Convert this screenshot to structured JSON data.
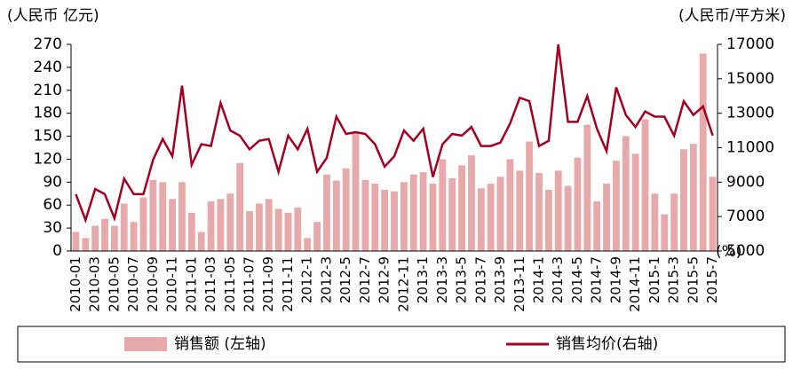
{
  "chart_data": {
    "type": "bar",
    "ylabel": "(人民币 亿元)",
    "y2label": "(人民币/平方米)",
    "annotation": "(%)",
    "categories": [
      "2010-01",
      null,
      "2010-03",
      null,
      "2010-05",
      null,
      "2010-07",
      null,
      "2010-09",
      null,
      "2010-11",
      null,
      "2011-01",
      null,
      "2011-03",
      null,
      "2011-05",
      null,
      "2011-07",
      null,
      "2011-09",
      null,
      "2011-11",
      null,
      "2012-1",
      null,
      "2012-3",
      null,
      "2012-5",
      null,
      "2012-7",
      null,
      "2012-9",
      null,
      "2012-11",
      null,
      "2013-1",
      null,
      "2013-3",
      null,
      "2013-5",
      null,
      "2013-7",
      null,
      "2013-9",
      null,
      "2013-11",
      null,
      "2014-1",
      null,
      "2014-3",
      null,
      "2014-5",
      null,
      "2014-7",
      null,
      "2014-9",
      null,
      "2014-11",
      null,
      "2015-1",
      null,
      "2015-3",
      null,
      "2015-5",
      null,
      "2015-7"
    ],
    "series": [
      {
        "name": "销售额 (左轴)",
        "type": "bar",
        "color": "#e8a9aa",
        "values": [
          25,
          17,
          33,
          42,
          33,
          62,
          38,
          70,
          93,
          90,
          68,
          90,
          50,
          25,
          65,
          68,
          75,
          115,
          52,
          62,
          68,
          55,
          50,
          57,
          17,
          38,
          100,
          92,
          108,
          155,
          93,
          88,
          80,
          78,
          90,
          100,
          103,
          88,
          120,
          95,
          112,
          125,
          82,
          88,
          97,
          120,
          105,
          143,
          102,
          80,
          105,
          85,
          122,
          165,
          65,
          88,
          118,
          150,
          127,
          172,
          75,
          48,
          75,
          133,
          140,
          258,
          97
        ]
      },
      {
        "name": "销售均价(右轴)",
        "type": "line",
        "axis": "y2",
        "color": "#a50021",
        "values": [
          8300,
          6800,
          8600,
          8300,
          6900,
          9200,
          8300,
          8300,
          10300,
          11500,
          10500,
          14600,
          10000,
          11200,
          11100,
          13600,
          12000,
          11700,
          10900,
          11400,
          11500,
          9600,
          11700,
          10900,
          12100,
          9600,
          10400,
          12800,
          11800,
          11900,
          11800,
          11200,
          9900,
          10500,
          12000,
          11400,
          12100,
          9300,
          11200,
          11800,
          11700,
          12200,
          11100,
          11100,
          11300,
          12400,
          13900,
          13700,
          11100,
          11400,
          17000,
          12500,
          12500,
          14000,
          12100,
          10800,
          14500,
          12900,
          12200,
          13100,
          12800,
          12800,
          11700,
          13700,
          12900,
          13400,
          11700
        ]
      }
    ],
    "ylim": [
      0,
      270
    ],
    "yticks": [
      0,
      30,
      60,
      90,
      120,
      150,
      180,
      210,
      240,
      270
    ],
    "y2lim": [
      5000,
      17000
    ],
    "y2ticks": [
      5000,
      7000,
      9000,
      11000,
      13000,
      15000,
      17000
    ]
  }
}
